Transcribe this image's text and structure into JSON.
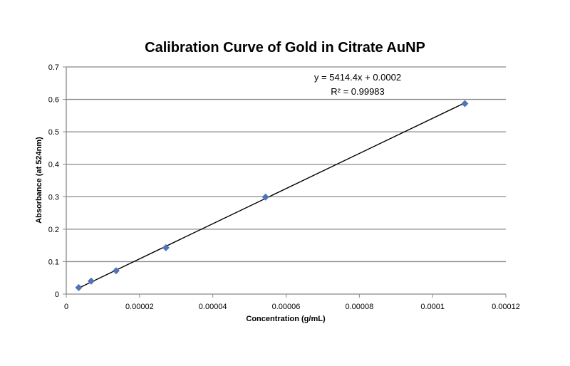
{
  "chart_data": {
    "type": "scatter",
    "title": "Calibration Curve of Gold in Citrate AuNP",
    "xlabel": "Concentration (g/mL)",
    "ylabel": "Absorbance (at 524nm)",
    "xlim": [
      0,
      0.00012
    ],
    "ylim": [
      0,
      0.7
    ],
    "xticks": [
      "0",
      "0.00002",
      "0.00004",
      "0.00006",
      "0.00008",
      "0.0001",
      "0.00012"
    ],
    "yticks": [
      "0",
      "0.1",
      "0.2",
      "0.3",
      "0.4",
      "0.5",
      "0.6",
      "0.7"
    ],
    "grid": "horizontal",
    "marker_color": "#4f74b8",
    "x": [
      3.4e-06,
      6.8e-06,
      1.36e-05,
      2.72e-05,
      5.44e-05,
      0.0001088
    ],
    "y": [
      0.02,
      0.04,
      0.072,
      0.143,
      0.299,
      0.587
    ],
    "trendline": {
      "slope": 5414.4,
      "intercept": 0.0002,
      "color": "#000000"
    },
    "equation": "y = 5414.4x + 0.0002",
    "r2": "R² = 0.99983"
  }
}
